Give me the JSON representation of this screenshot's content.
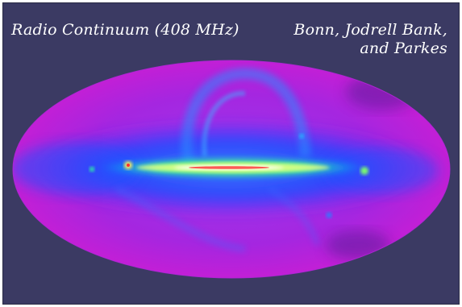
{
  "image": {
    "title": "Radio Continuum (408 MHz)",
    "credit_line_1": "Bonn, Jodrell Bank,",
    "credit_line_2": "and Parkes",
    "colors": {
      "background": "#3b3a63",
      "sky_base": "#8a2be2",
      "sky_edge": "#c21fd6",
      "plane_blue": "#1a5cff",
      "plane_green": "#3cff6a",
      "plane_core": "#ffffff",
      "hotspot_red": "#ff2a2a"
    }
  }
}
